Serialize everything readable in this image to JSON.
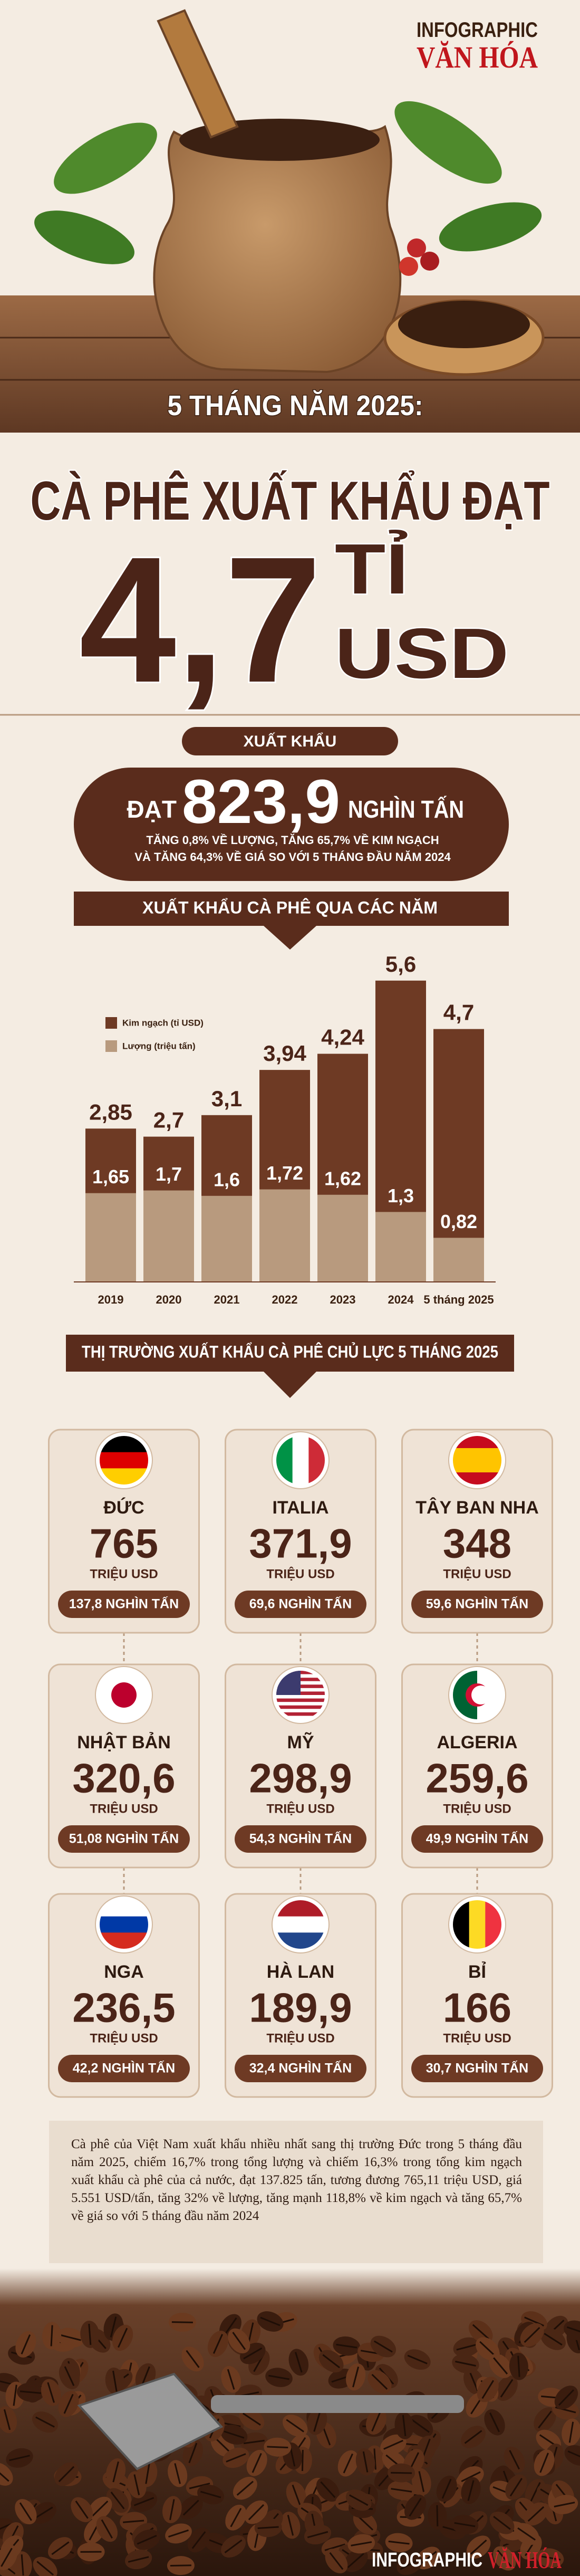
{
  "header": {
    "brand": "INFOGRAPHIC",
    "brand_name": "VĂN HÓA",
    "subtitle": "5 THÁNG NĂM 2025:",
    "title": "CÀ PHÊ XUẤT KHẨU ĐẠT",
    "big_number": "4,7",
    "big_unit_1": "TỈ",
    "big_unit_2": "USD"
  },
  "export": {
    "label": "XUẤT KHẨU",
    "prefix": "ĐẠT",
    "value": "823,9",
    "unit": "NGHÌN TẤN",
    "detail_lines": [
      "TĂNG 0,8% VỀ LƯỢNG, TĂNG 65,7% VỀ KIM NGẠCH",
      "VÀ TĂNG 64,3% VỀ GIÁ SO VỚI 5 THÁNG ĐẦU NĂM 2024"
    ]
  },
  "chart_data": {
    "type": "bar",
    "title": "XUẤT KHẨU CÀ PHÊ QUA CÁC NĂM",
    "categories": [
      "2019",
      "2020",
      "2021",
      "2022",
      "2023",
      "2024",
      "5 tháng 2025"
    ],
    "series": [
      {
        "name": "Kim ngạch (tỉ USD)",
        "color": "#6e3a24",
        "values": [
          2.85,
          2.7,
          3.1,
          3.94,
          4.24,
          5.6,
          4.7
        ],
        "value_labels": [
          "2,85",
          "2,7",
          "3,1",
          "3,94",
          "4,24",
          "5,6",
          "4,7"
        ]
      },
      {
        "name": "Lượng (triệu tấn)",
        "color": "#b89a7e",
        "values": [
          1.65,
          1.7,
          1.6,
          1.72,
          1.62,
          1.3,
          0.82
        ],
        "value_labels": [
          "1,65",
          "1,7",
          "1,6",
          "1,72",
          "1,62",
          "1,3",
          "0,82"
        ]
      }
    ]
  },
  "markets": {
    "title": "THỊ TRƯỜNG XUẤT KHẨU CÀ PHÊ CHỦ LỰC 5 THÁNG 2025",
    "items": [
      {
        "country": "ĐỨC",
        "value": "765",
        "unit": "TRIỆU USD",
        "volume": "137,8 NGHÌN TẤN"
      },
      {
        "country": "ITALIA",
        "value": "371,9",
        "unit": "TRIỆU USD",
        "volume": "69,6 NGHÌN TẤN"
      },
      {
        "country": "TÂY BAN NHA",
        "value": "348",
        "unit": "TRIỆU USD",
        "volume": "59,6 NGHÌN TẤN"
      },
      {
        "country": "NHẬT BẢN",
        "value": "320,6",
        "unit": "TRIỆU USD",
        "volume": "51,08 NGHÌN TẤN"
      },
      {
        "country": "MỸ",
        "value": "298,9",
        "unit": "TRIỆU USD",
        "volume": "54,3 NGHÌN TẤN"
      },
      {
        "country": "ALGERIA",
        "value": "259,6",
        "unit": "TRIỆU USD",
        "volume": "49,9 NGHÌN TẤN"
      },
      {
        "country": "NGA",
        "value": "236,5",
        "unit": "TRIỆU USD",
        "volume": "42,2 NGHÌN TẤN"
      },
      {
        "country": "HÀ LAN",
        "value": "189,9",
        "unit": "TRIỆU USD",
        "volume": "32,4 NGHÌN TẤN"
      },
      {
        "country": "BỈ",
        "value": "166",
        "unit": "TRIỆU USD",
        "volume": "30,7 NGHÌN TẤN"
      }
    ]
  },
  "note": "Cà phê của Việt Nam xuất khẩu nhiều nhất sang thị trường Đức trong 5 tháng đầu năm 2025, chiếm 16,7% trong tổng lượng và chiếm 16,3% trong tổng kim ngạch xuất khẩu cà phê của cả nước, đạt 137.825 tấn, tương đương 765,11 triệu USD, giá 5.551 USD/tấn, tăng 32% về lượng, tăng mạnh 118,8% về kim ngạch và tăng 65,7% về giá so với 5 tháng đầu năm 2024",
  "footer": {
    "brand": "INFOGRAPHIC",
    "brand_name": "VĂN HÓA"
  }
}
